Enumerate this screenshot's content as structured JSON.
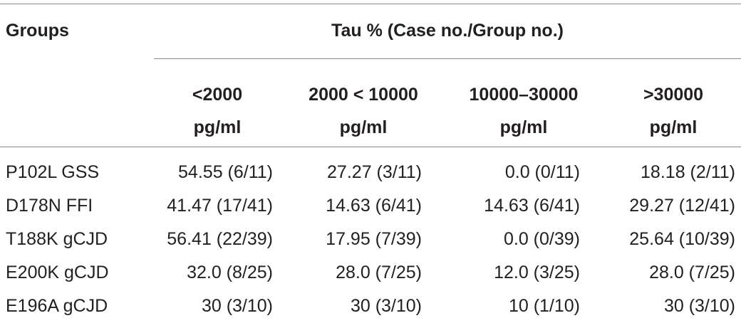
{
  "table": {
    "group_header": "Groups",
    "spanning_header": "Tau % (Case no./Group no.)",
    "columns": [
      {
        "line1": "<2000",
        "line2": "pg/ml"
      },
      {
        "line1": "2000 < 10000",
        "line2": "pg/ml"
      },
      {
        "line1": "10000–30000",
        "line2": "pg/ml"
      },
      {
        "line1": ">30000",
        "line2": "pg/ml"
      }
    ],
    "rows": [
      {
        "group": "P102L GSS",
        "values": [
          "54.55 (6/11)",
          "27.27 (3/11)",
          "0.0 (0/11)",
          "18.18 (2/11)"
        ]
      },
      {
        "group": "D178N FFI",
        "values": [
          "41.47 (17/41)",
          "14.63 (6/41)",
          "14.63 (6/41)",
          "29.27 (12/41)"
        ]
      },
      {
        "group": "T188K gCJD",
        "values": [
          "56.41 (22/39)",
          "17.95 (7/39)",
          "0.0 (0/39)",
          "25.64 (10/39)"
        ]
      },
      {
        "group": "E200K gCJD",
        "values": [
          "32.0 (8/25)",
          "28.0 (7/25)",
          "12.0 (3/25)",
          "28.0 (7/25)"
        ]
      },
      {
        "group": "E196A gCJD",
        "values": [
          "30 (3/10)",
          "30 (3/10)",
          "10 (1/10)",
          "30 (3/10)"
        ]
      }
    ]
  }
}
